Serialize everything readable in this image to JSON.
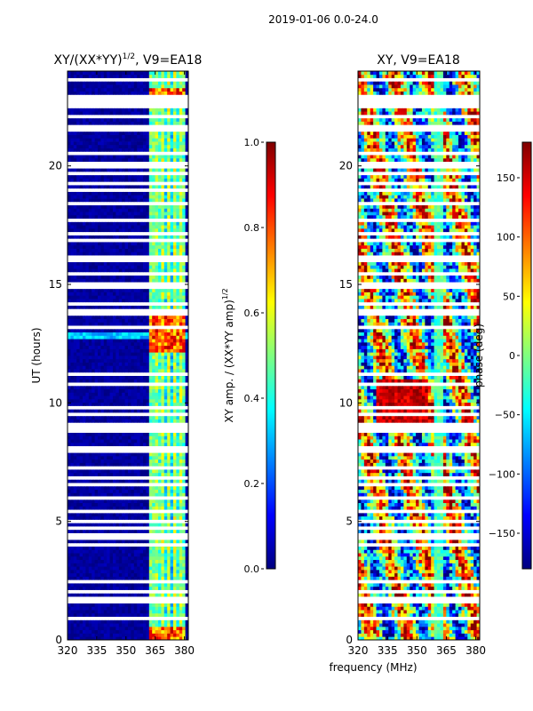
{
  "figure": {
    "suptitle": "2019-01-06 0.0-24.0",
    "xlabel_shared": "frequency (MHz)"
  },
  "chart_data": [
    {
      "type": "heatmap",
      "title": "XY/(XX*YY)",
      "title_sup": "1/2",
      "title_suffix": ", V9=EA18",
      "xlabel": "",
      "ylabel": "UT (hours)",
      "xlim": [
        320,
        382
      ],
      "ylim": [
        0,
        24
      ],
      "xticks": [
        320,
        335,
        350,
        365,
        380
      ],
      "yticks": [
        0,
        5,
        10,
        15,
        20
      ],
      "colorbar": {
        "label": "XY amp. / (XX*YY amp)",
        "label_sup": "1/2",
        "range": [
          0.0,
          1.0
        ],
        "ticks": [
          "0.0",
          "0.2",
          "0.4",
          "0.6",
          "0.8",
          "1.0"
        ],
        "tick_values": [
          0.0,
          0.2,
          0.4,
          0.6,
          0.8,
          1.0
        ],
        "colormap": "jet"
      },
      "bright_band_mhz": [
        362,
        380
      ],
      "peak_hours": [
        0.3,
        12.4,
        13.0,
        13.5,
        23.0
      ]
    },
    {
      "type": "heatmap",
      "title": "XY, V9=EA18",
      "xlabel": "frequency (MHz)",
      "ylabel": "",
      "xlim": [
        320,
        382
      ],
      "ylim": [
        0,
        24
      ],
      "xticks": [
        320,
        335,
        350,
        365,
        380
      ],
      "yticks": [
        0,
        5,
        10,
        15,
        20
      ],
      "colorbar": {
        "label": "phase (deg)",
        "range": [
          -180,
          180
        ],
        "ticks": [
          "150",
          "100",
          "50",
          "0",
          "−50",
          "−100",
          "−150"
        ],
        "tick_values": [
          150,
          100,
          50,
          0,
          -50,
          -100,
          -150
        ],
        "colormap": "jet"
      }
    }
  ],
  "colors": {
    "background": "#ffffff",
    "gap": "#ffffff",
    "jet_low": "#00007f",
    "jet_high": "#7f0000"
  }
}
